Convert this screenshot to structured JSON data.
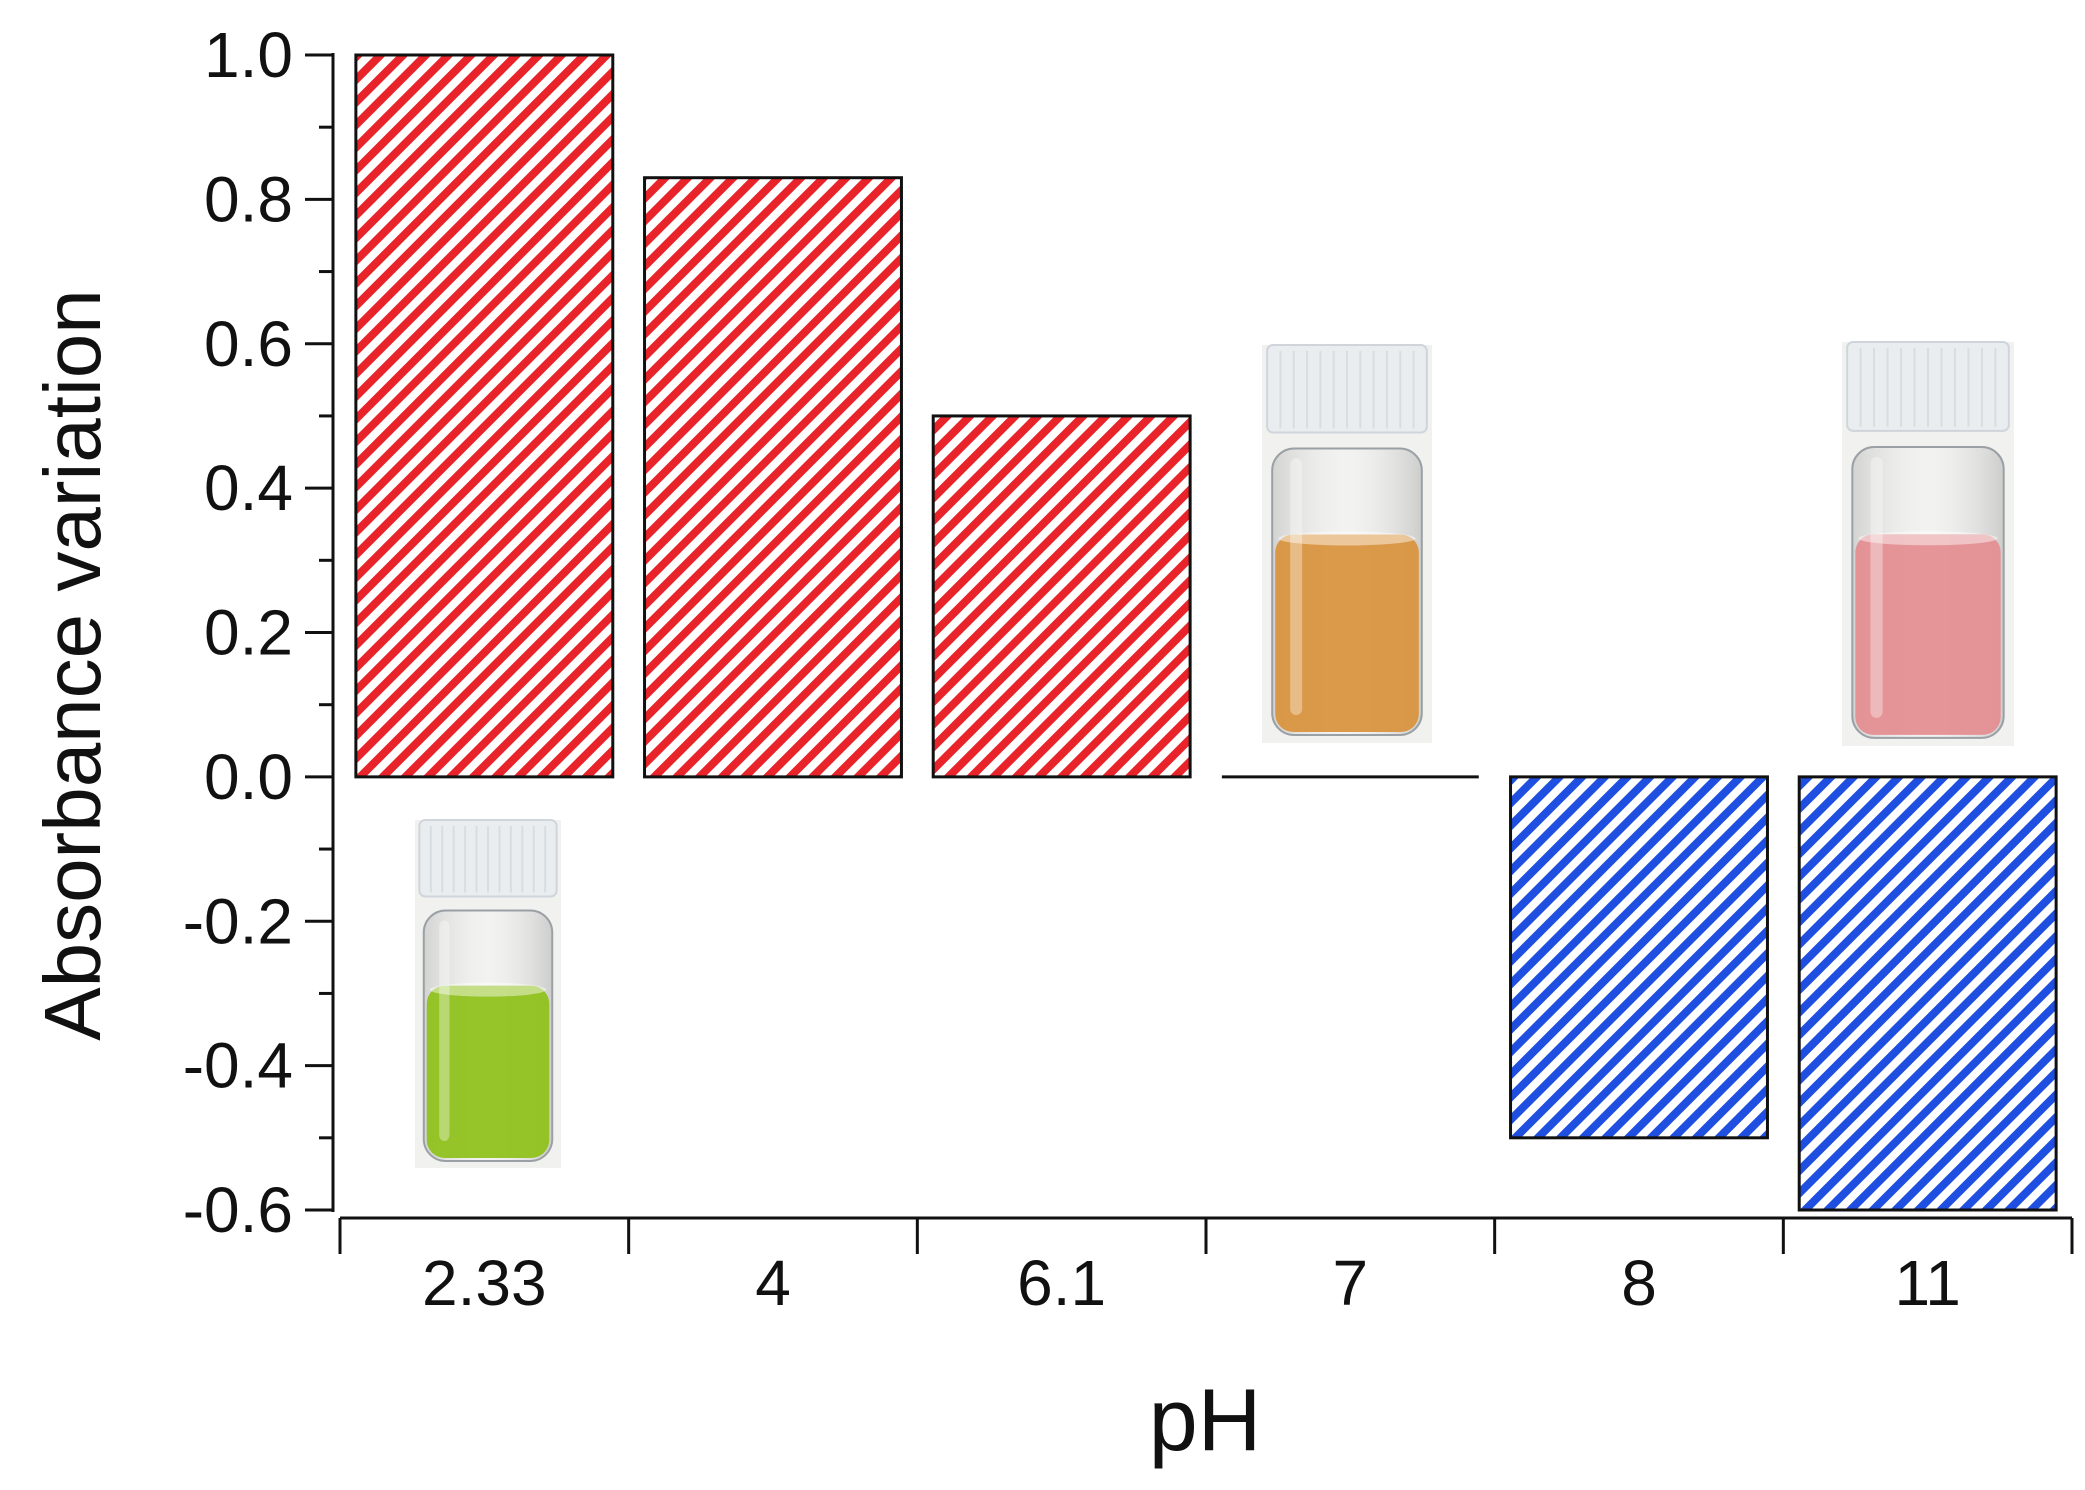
{
  "chart_data": {
    "type": "bar",
    "title": "",
    "xlabel": "pH",
    "ylabel": "Absorbance variation",
    "categories": [
      "2.33",
      "4",
      "6.1",
      "7",
      "8",
      "11"
    ],
    "values": [
      1.0,
      0.83,
      0.5,
      0.0,
      -0.5,
      -0.6
    ],
    "ylim": [
      -0.6,
      1.0
    ],
    "yticks": [
      "1.0",
      "0.8",
      "0.6",
      "0.4",
      "0.2",
      "0.0",
      "-0.2",
      "-0.4",
      "-0.6"
    ],
    "grid": false,
    "legend": "none",
    "colors": {
      "positive": "#e8242a",
      "negative": "#1f4fe0"
    },
    "insets": [
      {
        "category": "2.33",
        "liquid": "green",
        "liquid_color": "#8fc21c"
      },
      {
        "category": "7",
        "liquid": "orange",
        "liquid_color": "#d9953f"
      },
      {
        "category": "11",
        "liquid": "pink",
        "liquid_color": "#e48f92"
      }
    ]
  }
}
